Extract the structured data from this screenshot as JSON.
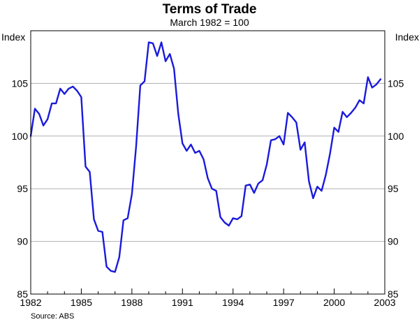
{
  "chart_data": {
    "type": "line",
    "title": "Terms of Trade",
    "subtitle": "March 1982 = 100",
    "y_unit_left": "Index",
    "y_unit_right": "Index",
    "source": "Source: ABS",
    "xlim": [
      1982,
      2003
    ],
    "ylim": [
      85,
      110
    ],
    "x_ticks": [
      1982,
      1985,
      1988,
      1991,
      1994,
      1997,
      2000,
      2003
    ],
    "x_tick_labels": [
      "1982",
      "1985",
      "1988",
      "1991",
      "1994",
      "1997",
      "2000",
      "2003"
    ],
    "y_ticks": [
      85,
      90,
      95,
      100,
      105
    ],
    "y_tick_labels": [
      "85",
      "90",
      "95",
      "100",
      "105"
    ],
    "grid": "horizontal",
    "series": [
      {
        "color": "#1a1adc",
        "x": [
          1982.0,
          1982.25,
          1982.5,
          1982.75,
          1983.0,
          1983.25,
          1983.5,
          1983.75,
          1984.0,
          1984.25,
          1984.5,
          1984.75,
          1985.0,
          1985.25,
          1985.5,
          1985.75,
          1986.0,
          1986.25,
          1986.5,
          1986.75,
          1987.0,
          1987.25,
          1987.5,
          1987.75,
          1988.0,
          1988.25,
          1988.5,
          1988.75,
          1989.0,
          1989.25,
          1989.5,
          1989.75,
          1990.0,
          1990.25,
          1990.5,
          1990.75,
          1991.0,
          1991.25,
          1991.5,
          1991.75,
          1992.0,
          1992.25,
          1992.5,
          1992.75,
          1993.0,
          1993.25,
          1993.5,
          1993.75,
          1994.0,
          1994.25,
          1994.5,
          1994.75,
          1995.0,
          1995.25,
          1995.5,
          1995.75,
          1996.0,
          1996.25,
          1996.5,
          1996.75,
          1997.0,
          1997.25,
          1997.5,
          1997.75,
          1998.0,
          1998.25,
          1998.5,
          1998.75,
          1999.0,
          1999.25,
          1999.5,
          1999.75,
          2000.0,
          2000.25,
          2000.5,
          2000.75,
          2001.0,
          2001.25,
          2001.5,
          2001.75,
          2002.0,
          2002.25,
          2002.5,
          2002.75
        ],
        "values": [
          100.0,
          102.6,
          102.1,
          101.0,
          101.6,
          103.1,
          103.1,
          104.5,
          104.0,
          104.5,
          104.7,
          104.3,
          103.7,
          97.1,
          96.6,
          92.1,
          91.0,
          90.9,
          87.6,
          87.2,
          87.1,
          88.5,
          92.0,
          92.2,
          94.5,
          99.0,
          104.8,
          105.2,
          108.9,
          108.8,
          107.6,
          108.9,
          107.1,
          107.8,
          106.4,
          102.1,
          99.3,
          98.6,
          99.2,
          98.4,
          98.6,
          97.8,
          96.0,
          95.0,
          94.8,
          92.3,
          91.8,
          91.5,
          92.2,
          92.1,
          92.4,
          95.3,
          95.4,
          94.6,
          95.5,
          95.8,
          97.3,
          99.6,
          99.7,
          100.0,
          99.2,
          102.2,
          101.8,
          101.3,
          98.7,
          99.4,
          95.7,
          94.1,
          95.2,
          94.8,
          96.3,
          98.3,
          100.8,
          100.4,
          102.3,
          101.8,
          102.2,
          102.7,
          103.4,
          103.1,
          105.6,
          104.6,
          104.9,
          105.4
        ]
      }
    ]
  }
}
